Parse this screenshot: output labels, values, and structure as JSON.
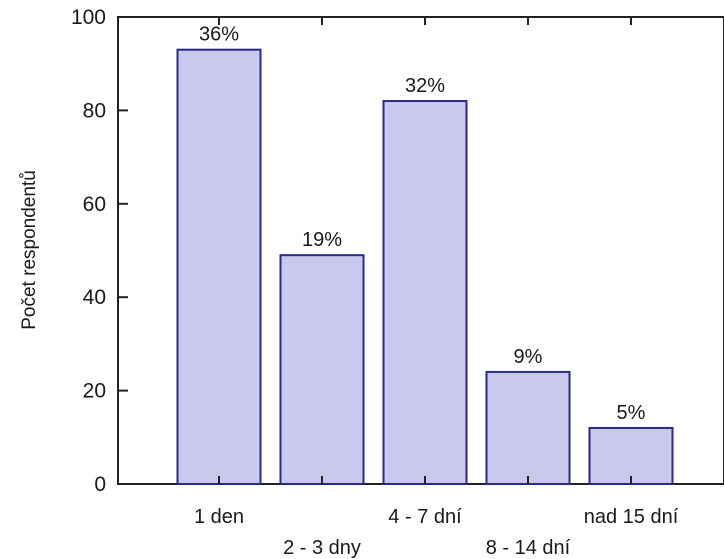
{
  "chart_data": {
    "type": "bar",
    "ylabel": "Počet respondentů",
    "ylim": [
      0,
      100
    ],
    "yticks": [
      "0",
      "20",
      "40",
      "60",
      "80",
      "100"
    ],
    "categories": [
      "1 den",
      "2 - 3 dny",
      "4 - 7 dní",
      "8 - 14 dní",
      "nad 15 dní"
    ],
    "values": [
      93,
      49,
      82,
      24,
      12
    ],
    "data_labels": [
      "36%",
      "19%",
      "32%",
      "9%",
      "5%"
    ],
    "bar_fill": "#c9c9ee",
    "bar_stroke": "#2a2a88",
    "axis_color": "#222222",
    "grid": false
  }
}
